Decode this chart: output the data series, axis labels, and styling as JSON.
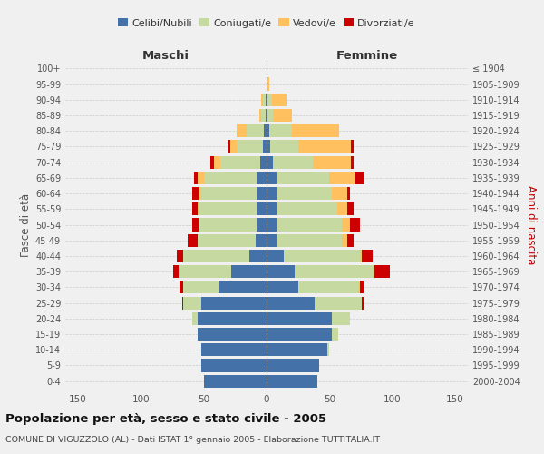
{
  "age_groups": [
    "0-4",
    "5-9",
    "10-14",
    "15-19",
    "20-24",
    "25-29",
    "30-34",
    "35-39",
    "40-44",
    "45-49",
    "50-54",
    "55-59",
    "60-64",
    "65-69",
    "70-74",
    "75-79",
    "80-84",
    "85-89",
    "90-94",
    "95-99",
    "100+"
  ],
  "birth_years": [
    "2000-2004",
    "1995-1999",
    "1990-1994",
    "1985-1989",
    "1980-1984",
    "1975-1979",
    "1970-1974",
    "1965-1969",
    "1960-1964",
    "1955-1959",
    "1950-1954",
    "1945-1949",
    "1940-1944",
    "1935-1939",
    "1930-1934",
    "1925-1929",
    "1920-1924",
    "1915-1919",
    "1910-1914",
    "1905-1909",
    "≤ 1904"
  ],
  "male": {
    "celibi": [
      50,
      52,
      52,
      55,
      55,
      52,
      38,
      28,
      14,
      9,
      8,
      8,
      8,
      8,
      5,
      3,
      2,
      1,
      1,
      0,
      0
    ],
    "coniugati": [
      0,
      0,
      0,
      0,
      4,
      14,
      28,
      42,
      52,
      46,
      46,
      46,
      44,
      42,
      32,
      21,
      14,
      3,
      2,
      0,
      0
    ],
    "vedovi": [
      0,
      0,
      0,
      0,
      0,
      0,
      0,
      0,
      0,
      0,
      0,
      1,
      2,
      5,
      5,
      5,
      8,
      2,
      1,
      0,
      0
    ],
    "divorziati": [
      0,
      0,
      0,
      0,
      0,
      1,
      3,
      4,
      5,
      8,
      5,
      4,
      5,
      3,
      3,
      2,
      0,
      0,
      0,
      0,
      0
    ]
  },
  "female": {
    "nubili": [
      40,
      42,
      48,
      52,
      52,
      38,
      25,
      22,
      14,
      8,
      8,
      8,
      8,
      8,
      5,
      3,
      2,
      1,
      1,
      0,
      0
    ],
    "coniugate": [
      0,
      0,
      2,
      5,
      14,
      38,
      48,
      62,
      60,
      52,
      52,
      48,
      44,
      42,
      32,
      22,
      18,
      4,
      3,
      0,
      0
    ],
    "vedove": [
      0,
      0,
      0,
      0,
      0,
      0,
      1,
      2,
      2,
      4,
      6,
      8,
      12,
      20,
      30,
      42,
      38,
      15,
      12,
      2,
      0
    ],
    "divorziate": [
      0,
      0,
      0,
      0,
      0,
      1,
      3,
      12,
      8,
      5,
      8,
      5,
      2,
      8,
      2,
      2,
      0,
      0,
      0,
      0,
      0
    ]
  },
  "colors": {
    "celibi_nubili": "#4472a8",
    "coniugati": "#c5d9a0",
    "vedovi": "#ffc060",
    "divorziati": "#cc0000"
  },
  "title": "Popolazione per età, sesso e stato civile - 2005",
  "subtitle": "COMUNE DI VIGUZZOLO (AL) - Dati ISTAT 1° gennaio 2005 - Elaborazione TUTTITALIA.IT",
  "ylabel_left": "Fasce di età",
  "ylabel_right": "Anni di nascita",
  "xlabel_maschi": "Maschi",
  "xlabel_femmine": "Femmine",
  "xlim": 160,
  "bg_color": "#f0f0f0",
  "grid_color": "#cccccc"
}
